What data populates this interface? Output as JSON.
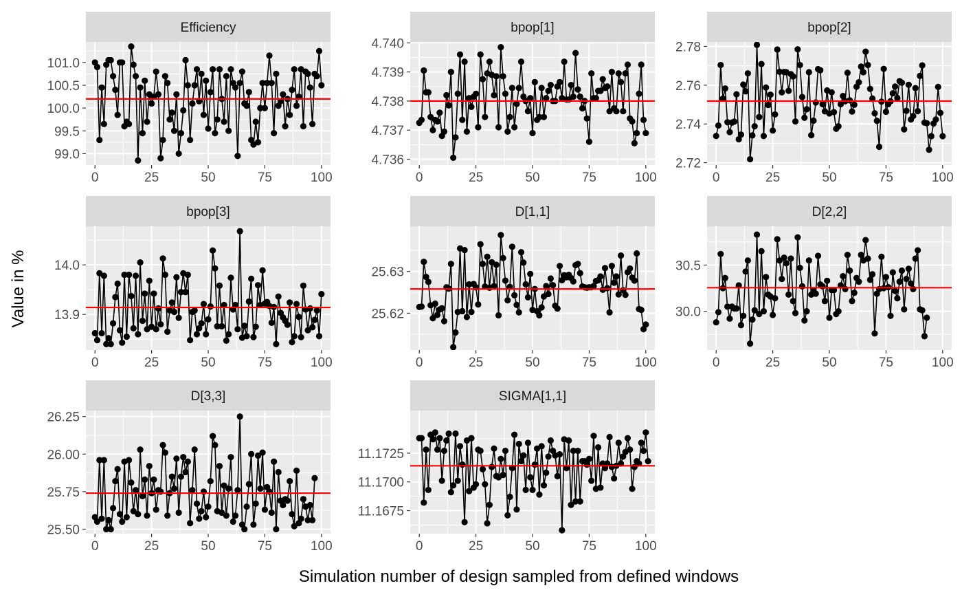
{
  "figure": {
    "xlabel": "Simulation number of design sampled from defined windows",
    "ylabel": "Value in %",
    "colors": {
      "panel_bg": "#EBEBEB",
      "strip_bg": "#D9D9D9",
      "grid": "#FFFFFF",
      "points": "#000000",
      "ref_line": "#FF0000"
    }
  },
  "chart_data": [
    {
      "type": "line",
      "title": "Efficiency",
      "xlim": [
        -4,
        104
      ],
      "ylim": [
        98.75,
        101.45
      ],
      "xticks": [
        0,
        25,
        50,
        75,
        100
      ],
      "xtick_labels": [
        "0",
        "25",
        "50",
        "75",
        "100"
      ],
      "yticks": [
        99.0,
        99.5,
        100.0,
        100.5,
        101.0
      ],
      "ytick_labels": [
        "99.0",
        "99.5",
        "100.0",
        "100.5",
        "101.0"
      ],
      "reference": 100.2,
      "values": [
        101.0,
        100.9,
        99.3,
        100.45,
        99.65,
        100.95,
        101.05,
        101.05,
        100.7,
        100.4,
        99.85,
        101.0,
        101.0,
        99.6,
        99.7,
        99.65,
        101.35,
        100.95,
        100.7,
        98.85,
        100.45,
        99.45,
        100.6,
        99.7,
        100.3,
        100.1,
        100.25,
        100.8,
        100.3,
        98.9,
        99.3,
        100.7,
        100.55,
        99.75,
        99.9,
        99.5,
        100.3,
        99.0,
        99.45,
        99.95,
        101.05,
        100.5,
        99.3,
        100.1,
        100.5,
        100.85,
        100.15,
        100.75,
        99.85,
        100.6,
        99.55,
        100.35,
        100.85,
        99.45,
        99.75,
        100.85,
        100.2,
        99.7,
        100.7,
        99.5,
        100.85,
        100.55,
        100.45,
        98.95,
        100.55,
        100.8,
        100.1,
        100.05,
        100.35,
        99.3,
        99.2,
        99.7,
        99.25,
        100.0,
        100.55,
        100.0,
        100.55,
        101.15,
        100.55,
        99.45,
        100.75,
        100.05,
        100.15,
        100.3,
        99.6,
        100.2,
        99.85,
        100.4,
        100.85,
        100.05,
        100.25,
        100.85,
        99.6,
        100.8,
        100.75,
        100.45,
        99.65,
        100.75,
        100.7,
        101.25,
        100.5
      ]
    },
    {
      "type": "line",
      "title": "bpop[1]",
      "xlim": [
        -4,
        104
      ],
      "ylim": [
        4.7358,
        4.74003
      ],
      "xticks": [
        0,
        25,
        50,
        75,
        100
      ],
      "xtick_labels": [
        "0",
        "25",
        "50",
        "75",
        "100"
      ],
      "yticks": [
        4.736,
        4.737,
        4.738,
        4.739,
        4.74
      ],
      "ytick_labels": [
        "4.736",
        "4.737",
        "4.738",
        "4.739",
        "4.740"
      ],
      "reference": 4.738,
      "values": [
        4.73725,
        4.73735,
        4.73905,
        4.7383,
        4.7383,
        4.73745,
        4.737,
        4.73735,
        4.7373,
        4.7376,
        4.7368,
        4.73695,
        4.7382,
        4.73785,
        4.739,
        4.73605,
        4.73675,
        4.73825,
        4.7396,
        4.73735,
        4.73935,
        4.73695,
        4.7381,
        4.7378,
        4.73815,
        4.73825,
        4.7371,
        4.7396,
        4.73875,
        4.73745,
        4.73895,
        4.73935,
        4.7389,
        4.7382,
        4.73885,
        4.7371,
        4.73985,
        4.73885,
        4.73825,
        4.73695,
        4.73745,
        4.73845,
        4.7371,
        4.7379,
        4.73845,
        4.73935,
        4.73815,
        4.738,
        4.73765,
        4.7381,
        4.7369,
        4.73865,
        4.73735,
        4.73745,
        4.73845,
        4.73745,
        4.7381,
        4.73835,
        4.73855,
        4.738,
        4.738,
        4.7385,
        4.73865,
        4.7381,
        4.73935,
        4.73805,
        4.73805,
        4.73855,
        4.73815,
        4.73965,
        4.7384,
        4.73815,
        4.73775,
        4.738,
        4.7374,
        4.7366,
        4.73895,
        4.7381,
        4.7381,
        4.73835,
        4.73835,
        4.73875,
        4.73845,
        4.7385,
        4.73765,
        4.739,
        4.73775,
        4.73765,
        4.73895,
        4.73865,
        4.73765,
        4.73895,
        4.73925,
        4.7374,
        4.7373,
        4.73655,
        4.7369,
        4.73825,
        4.73925,
        4.73735,
        4.7369
      ]
    },
    {
      "type": "line",
      "title": "bpop[2]",
      "xlim": [
        -4,
        104
      ],
      "ylim": [
        2.7188,
        2.7823
      ],
      "xticks": [
        0,
        25,
        50,
        75,
        100
      ],
      "xtick_labels": [
        "0",
        "25",
        "50",
        "75",
        "100"
      ],
      "yticks": [
        2.72,
        2.74,
        2.76,
        2.78
      ],
      "ytick_labels": [
        "2.72",
        "2.74",
        "2.76",
        "2.78"
      ],
      "reference": 2.7518,
      "values": [
        2.7338,
        2.7392,
        2.7704,
        2.7531,
        2.7583,
        2.7409,
        2.7358,
        2.7407,
        2.7412,
        2.7553,
        2.7321,
        2.7345,
        2.7603,
        2.7568,
        2.7661,
        2.7218,
        2.7341,
        2.7388,
        2.7808,
        2.7436,
        2.7709,
        2.7338,
        2.7588,
        2.7498,
        2.7551,
        2.7366,
        2.7449,
        2.7784,
        2.7669,
        2.7563,
        2.7668,
        2.7667,
        2.7571,
        2.7657,
        2.7645,
        2.7413,
        2.7785,
        2.7704,
        2.7539,
        2.7432,
        2.7476,
        2.7667,
        2.7342,
        2.7417,
        2.7511,
        2.7683,
        2.7677,
        2.7502,
        2.7465,
        2.7573,
        2.7454,
        2.7563,
        2.7461,
        2.7375,
        2.7388,
        2.7502,
        2.7544,
        2.7517,
        2.7664,
        2.7522,
        2.7464,
        2.7499,
        2.7592,
        2.7615,
        2.7696,
        2.7667,
        2.7773,
        2.7704,
        2.7581,
        2.7531,
        2.7455,
        2.7416,
        2.7282,
        2.7515,
        2.7684,
        2.7463,
        2.7502,
        2.7517,
        2.7558,
        2.7593,
        2.7534,
        2.7621,
        2.7613,
        2.7372,
        2.7468,
        2.7602,
        2.7423,
        2.7441,
        2.7585,
        2.7466,
        2.7648,
        2.7702,
        2.7407,
        2.7404,
        2.7267,
        2.7337,
        2.7402,
        2.7423,
        2.7591,
        2.7457,
        2.7337
      ]
    },
    {
      "type": "line",
      "title": "bpop[3]",
      "xlim": [
        -4,
        104
      ],
      "ylim": [
        13.828,
        14.078
      ],
      "xticks": [
        0,
        25,
        50,
        75,
        100
      ],
      "xtick_labels": [
        "0",
        "25",
        "50",
        "75",
        "100"
      ],
      "yticks": [
        13.9,
        14.0
      ],
      "ytick_labels": [
        "13.9",
        "14.0"
      ],
      "reference": 13.914,
      "values": [
        13.862,
        13.848,
        13.983,
        13.862,
        13.978,
        13.84,
        13.852,
        13.84,
        13.882,
        13.935,
        13.962,
        13.868,
        13.843,
        13.98,
        13.855,
        13.98,
        13.937,
        13.872,
        13.978,
        13.86,
        14.005,
        13.887,
        13.942,
        13.87,
        13.968,
        13.875,
        13.942,
        13.87,
        13.912,
        13.88,
        14.013,
        13.98,
        13.865,
        13.908,
        13.924,
        13.905,
        13.975,
        13.893,
        13.945,
        13.983,
        13.945,
        13.98,
        13.848,
        13.905,
        13.908,
        13.86,
        13.872,
        13.882,
        13.921,
        13.86,
        13.89,
        13.916,
        14.029,
        13.993,
        13.876,
        13.958,
        13.876,
        13.919,
        13.847,
        13.86,
        13.974,
        13.91,
        13.919,
        13.87,
        14.068,
        13.853,
        13.877,
        13.856,
        13.926,
        13.972,
        13.854,
        13.875,
        13.959,
        13.919,
        13.989,
        13.922,
        13.925,
        13.917,
        13.883,
        13.915,
        13.84,
        13.936,
        13.903,
        13.894,
        13.887,
        13.879,
        13.924,
        13.844,
        13.856,
        13.921,
        13.895,
        13.854,
        13.958,
        13.91,
        13.868,
        13.912,
        13.874,
        13.889,
        13.908,
        13.856,
        13.941
      ]
    },
    {
      "type": "line",
      "title": "D[1,1]",
      "xlim": [
        -4,
        104
      ],
      "ylim": [
        25.6112,
        25.6408
      ],
      "xticks": [
        0,
        25,
        50,
        75,
        100
      ],
      "xtick_labels": [
        "0",
        "25",
        "50",
        "75",
        "100"
      ],
      "yticks": [
        25.62,
        25.63
      ],
      "ytick_labels": [
        "25.62",
        "25.63"
      ],
      "reference": 25.6258,
      "values": [
        25.6215,
        25.6216,
        25.6323,
        25.6287,
        25.6275,
        25.6219,
        25.6188,
        25.6223,
        25.6196,
        25.6209,
        25.6212,
        25.6181,
        25.6262,
        25.6259,
        25.6318,
        25.6119,
        25.6154,
        25.6203,
        25.6355,
        25.6205,
        25.6351,
        25.6191,
        25.6269,
        25.6203,
        25.627,
        25.6262,
        25.6221,
        25.6365,
        25.6318,
        25.6264,
        25.6335,
        25.6261,
        25.6322,
        25.6265,
        25.6316,
        25.6195,
        25.6387,
        25.6332,
        25.6278,
        25.6231,
        25.6263,
        25.6359,
        25.6243,
        25.622,
        25.6202,
        25.6346,
        25.6321,
        25.6269,
        25.6238,
        25.6294,
        25.6208,
        25.6258,
        25.6205,
        25.6195,
        25.6214,
        25.624,
        25.6265,
        25.6246,
        25.6283,
        25.6267,
        25.6218,
        25.6211,
        25.6313,
        25.6279,
        25.6291,
        25.6286,
        25.6292,
        25.6284,
        25.6276,
        25.6315,
        25.6318,
        25.6296,
        25.6264,
        25.6262,
        25.6261,
        25.6262,
        25.6262,
        25.6265,
        25.6277,
        25.6279,
        25.6288,
        25.6256,
        25.6308,
        25.626,
        25.6202,
        25.6313,
        25.6273,
        25.6288,
        25.6245,
        25.6338,
        25.6255,
        25.6244,
        25.6298,
        25.6307,
        25.6285,
        25.6278,
        25.6343,
        25.621,
        25.6208,
        25.6162,
        25.6173
      ]
    },
    {
      "type": "line",
      "title": "D[2,2]",
      "xlim": [
        -4,
        104
      ],
      "ylim": [
        29.58,
        30.92
      ],
      "xticks": [
        0,
        25,
        50,
        75,
        100
      ],
      "xtick_labels": [
        "0",
        "25",
        "50",
        "75",
        "100"
      ],
      "yticks": [
        30.0,
        30.5
      ],
      "ytick_labels": [
        "30.0",
        "30.5"
      ],
      "reference": 30.255,
      "values": [
        29.88,
        29.99,
        30.62,
        30.25,
        30.36,
        30.05,
        29.92,
        30.05,
        30.03,
        30.03,
        30.28,
        29.85,
        29.95,
        30.43,
        30.55,
        29.65,
        29.91,
        30.01,
        30.83,
        29.97,
        30.65,
        30.0,
        30.37,
        30.18,
        30.16,
        29.96,
        30.14,
        30.78,
        30.55,
        30.35,
        30.58,
        30.52,
        30.18,
        30.57,
        30.11,
        29.98,
        30.8,
        30.47,
        30.27,
        29.9,
        30.0,
        30.55,
        30.18,
        30.22,
        30.19,
        30.6,
        30.29,
        30.27,
        30.11,
        30.33,
        29.93,
        30.23,
        30.23,
        29.97,
        30.0,
        30.28,
        30.38,
        30.24,
        30.61,
        30.44,
        30.11,
        30.2,
        30.36,
        30.32,
        30.61,
        30.55,
        30.77,
        30.57,
        30.34,
        30.4,
        29.76,
        30.19,
        30.24,
        30.59,
        30.25,
        30.37,
        30.26,
        29.95,
        30.42,
        30.22,
        30.14,
        30.32,
        30.44,
        30.02,
        30.35,
        30.46,
        30.3,
        30.24,
        30.57,
        30.66,
        30.02,
        30.01,
        29.73,
        29.93
      ]
    },
    {
      "type": "line",
      "title": "D[3,3]",
      "xlim": [
        -4,
        104
      ],
      "ylim": [
        25.47,
        26.29
      ],
      "xticks": [
        0,
        25,
        50,
        75,
        100
      ],
      "xtick_labels": [
        "0",
        "25",
        "50",
        "75",
        "100"
      ],
      "yticks": [
        25.5,
        25.75,
        26.0,
        26.25
      ],
      "ytick_labels": [
        "25.50",
        "25.75",
        "26.00",
        "26.25"
      ],
      "reference": 25.74,
      "values": [
        25.58,
        25.55,
        25.96,
        25.57,
        25.96,
        25.5,
        25.56,
        25.5,
        25.64,
        25.82,
        25.9,
        25.6,
        25.55,
        25.95,
        25.58,
        25.96,
        25.81,
        25.62,
        25.76,
        25.6,
        26.03,
        25.72,
        25.83,
        25.59,
        25.92,
        25.74,
        25.83,
        25.63,
        25.76,
        25.75,
        26.06,
        26.01,
        25.59,
        25.74,
        25.85,
        25.77,
        25.97,
        25.61,
        25.85,
        25.98,
        25.88,
        25.95,
        25.54,
        25.76,
        26.03,
        25.67,
        25.57,
        25.62,
        25.75,
        25.58,
        25.65,
        25.82,
        26.12,
        26.06,
        25.62,
        25.92,
        25.61,
        25.79,
        25.59,
        25.77,
        25.98,
        25.55,
        25.59,
        25.76,
        26.25,
        25.53,
        25.5,
        25.65,
        25.8,
        26.0,
        25.53,
        25.67,
        25.99,
        25.77,
        26.01,
        25.63,
        25.78,
        25.75,
        25.61,
        25.95,
        25.5,
        25.88,
        25.69,
        25.66,
        25.7,
        25.69,
        25.82,
        25.6,
        25.52,
        25.89,
        25.54,
        25.57,
        25.7,
        25.65,
        25.56,
        25.66,
        25.56,
        25.84
      ]
    },
    {
      "type": "line",
      "title": "SIGMA[1,1]",
      "xlim": [
        -4,
        104
      ],
      "ylim": [
        11.1655,
        11.1762
      ],
      "xticks": [
        0,
        25,
        50,
        75,
        100
      ],
      "xtick_labels": [
        "0",
        "25",
        "50",
        "75",
        "100"
      ],
      "yticks": [
        11.1675,
        11.17,
        11.1725
      ],
      "ytick_labels": [
        "11.1675",
        "11.1700",
        "11.1725"
      ],
      "reference": 11.1714,
      "values": [
        11.1738,
        11.1738,
        11.1682,
        11.1728,
        11.1693,
        11.1741,
        11.1737,
        11.1743,
        11.1728,
        11.1738,
        11.1701,
        11.1727,
        11.1736,
        11.1742,
        11.1691,
        11.1697,
        11.1742,
        11.1701,
        11.1731,
        11.1715,
        11.1665,
        11.1736,
        11.1692,
        11.1738,
        11.1695,
        11.1698,
        11.1728,
        11.1727,
        11.1711,
        11.1698,
        11.1664,
        11.168,
        11.1713,
        11.1729,
        11.1705,
        11.1704,
        11.172,
        11.1706,
        11.1727,
        11.1671,
        11.1687,
        11.1712,
        11.1741,
        11.1676,
        11.1733,
        11.1718,
        11.1723,
        11.1693,
        11.1734,
        11.1704,
        11.1693,
        11.1715,
        11.1729,
        11.1689,
        11.1731,
        11.1697,
        11.1708,
        11.1722,
        11.1736,
        11.1727,
        11.1723,
        11.1705,
        11.1724,
        11.1658,
        11.1737,
        11.1712,
        11.1736,
        11.168,
        11.1727,
        11.1683,
        11.1727,
        11.1683,
        11.1718,
        11.1718,
        11.1715,
        11.172,
        11.1701,
        11.174,
        11.1694,
        11.173,
        11.1695,
        11.1716,
        11.1712,
        11.1716,
        11.1739,
        11.1713,
        11.1703,
        11.1714,
        11.1734,
        11.1716,
        11.1722,
        11.1726,
        11.1738,
        11.1728,
        11.1694,
        11.1713,
        11.1718,
        11.1716,
        11.1734,
        11.1727,
        11.1743,
        11.1718
      ]
    }
  ]
}
